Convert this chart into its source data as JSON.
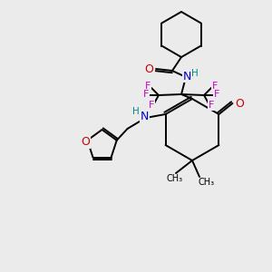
{
  "background_color": "#ebebeb",
  "atom_colors": {
    "C": "#000000",
    "N": "#0000cc",
    "O": "#cc0000",
    "F": "#cc00cc",
    "H": "#008888"
  },
  "bond_color": "#000000",
  "line_width": 1.4,
  "figsize": [
    3.0,
    3.0
  ],
  "dpi": 100
}
